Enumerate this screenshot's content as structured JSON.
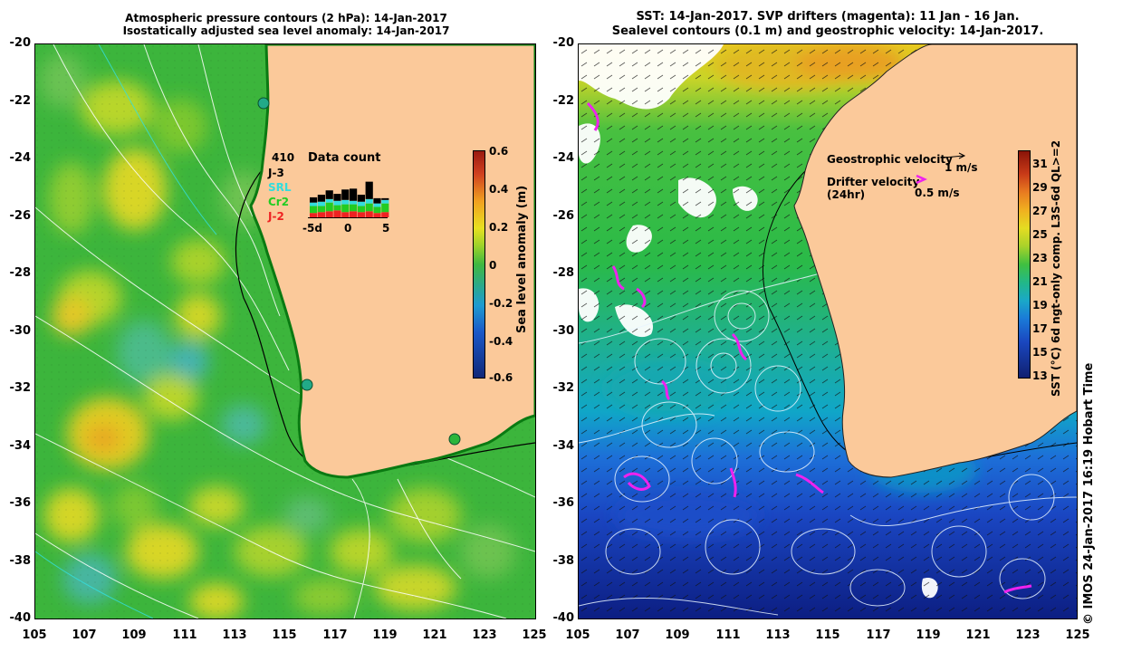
{
  "left": {
    "title_line1": "Atmospheric pressure contours (2 hPa): 14-Jan-2017",
    "title_line2": "Isostatically adjusted sea level anomaly: 14-Jan-2017",
    "colorbar_label": "Sea level anomaly (m)",
    "colorbar_ticks": [
      "0.6",
      "0.4",
      "0.2",
      "0",
      "-0.2",
      "-0.4",
      "-0.6"
    ],
    "inset": {
      "count": "410",
      "title": "Data count",
      "missions": [
        {
          "name": "J-3",
          "color": "#000000"
        },
        {
          "name": "SRL",
          "color": "#33dddd"
        },
        {
          "name": "Cr2",
          "color": "#22cc22"
        },
        {
          "name": "J-2",
          "color": "#ee2222"
        }
      ],
      "xticks": [
        "-5d",
        "0",
        "5"
      ],
      "bars": [
        {
          "j2": 0.05,
          "cr2": 0.08,
          "srl": 0.04,
          "j3": 0.06
        },
        {
          "j2": 0.06,
          "cr2": 0.07,
          "srl": 0.05,
          "j3": 0.08
        },
        {
          "j2": 0.07,
          "cr2": 0.1,
          "srl": 0.04,
          "j3": 0.1
        },
        {
          "j2": 0.08,
          "cr2": 0.06,
          "srl": 0.05,
          "j3": 0.08
        },
        {
          "j2": 0.06,
          "cr2": 0.09,
          "srl": 0.05,
          "j3": 0.12
        },
        {
          "j2": 0.07,
          "cr2": 0.08,
          "srl": 0.04,
          "j3": 0.14
        },
        {
          "j2": 0.06,
          "cr2": 0.07,
          "srl": 0.05,
          "j3": 0.08
        },
        {
          "j2": 0.07,
          "cr2": 0.09,
          "srl": 0.05,
          "j3": 0.2
        },
        {
          "j2": 0.05,
          "cr2": 0.07,
          "srl": 0.04,
          "j3": 0.06
        },
        {
          "j2": 0.06,
          "cr2": 0.1,
          "srl": 0.04,
          "j3": 0.02
        }
      ]
    }
  },
  "right": {
    "title_line1": "SST: 14-Jan-2017. SVP drifters (magenta): 11 Jan - 16 Jan.",
    "title_line2": "Sealevel contours (0.1 m) and geostrophic velocity: 14-Jan-2017.",
    "legend_geo": "Geostrophic velocity",
    "legend_geo_scale": "1 m/s",
    "legend_drifter_1": "Drifter velocity",
    "legend_drifter_2": "(24hr)",
    "legend_drifter_scale": "0.5 m/s",
    "colorbar_label": "SST (°C) 6d ngt-only comp. L3S-6d QL>=2",
    "colorbar_ticks": [
      "31",
      "29",
      "27",
      "25",
      "23",
      "21",
      "19",
      "17",
      "15",
      "13"
    ],
    "credit": "© IMOS 24-Jan-2017 16:19 Hobart Time"
  },
  "axes": {
    "lat_ticks": [
      "-20",
      "-22",
      "-24",
      "-26",
      "-28",
      "-30",
      "-32",
      "-34",
      "-36",
      "-38",
      "-40"
    ],
    "lon_ticks": [
      "105",
      "107",
      "109",
      "111",
      "113",
      "115",
      "117",
      "119",
      "121",
      "123",
      "125"
    ]
  },
  "colors": {
    "land": "#fbc99a",
    "coast": "#0a7a12",
    "ocean_green": "#3cb53c"
  }
}
